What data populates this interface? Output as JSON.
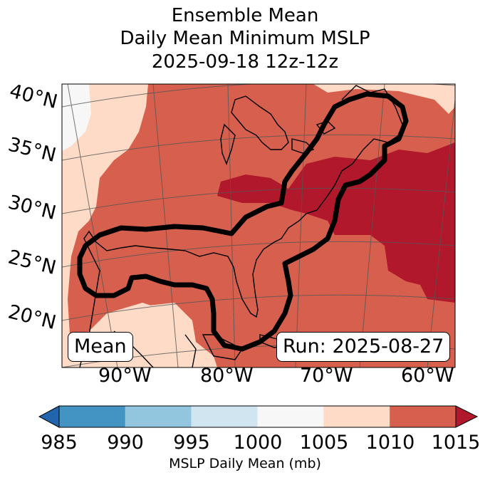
{
  "title": {
    "line1": "Ensemble Mean",
    "line2": "Daily Mean Minimum MSLP",
    "line3": "2025-09-18 12z-12z"
  },
  "map": {
    "lat_labels": [
      "40°N",
      "35°N",
      "30°N",
      "25°N",
      "20°N"
    ],
    "lon_labels": [
      "90°W",
      "80°W",
      "70°W",
      "60°W"
    ],
    "mean_box": "Mean",
    "run_box": "Run: 2025-08-27"
  },
  "colorbar": {
    "ticks": [
      "985",
      "990",
      "995",
      "1000",
      "1005",
      "1010",
      "1015"
    ],
    "label": "MSLP Daily Mean (mb)",
    "colors": [
      "#2166ac",
      "#4393c3",
      "#92c5de",
      "#d1e5f0",
      "#f7f7f7",
      "#fddbc7",
      "#d6604d",
      "#b2182b"
    ]
  }
}
